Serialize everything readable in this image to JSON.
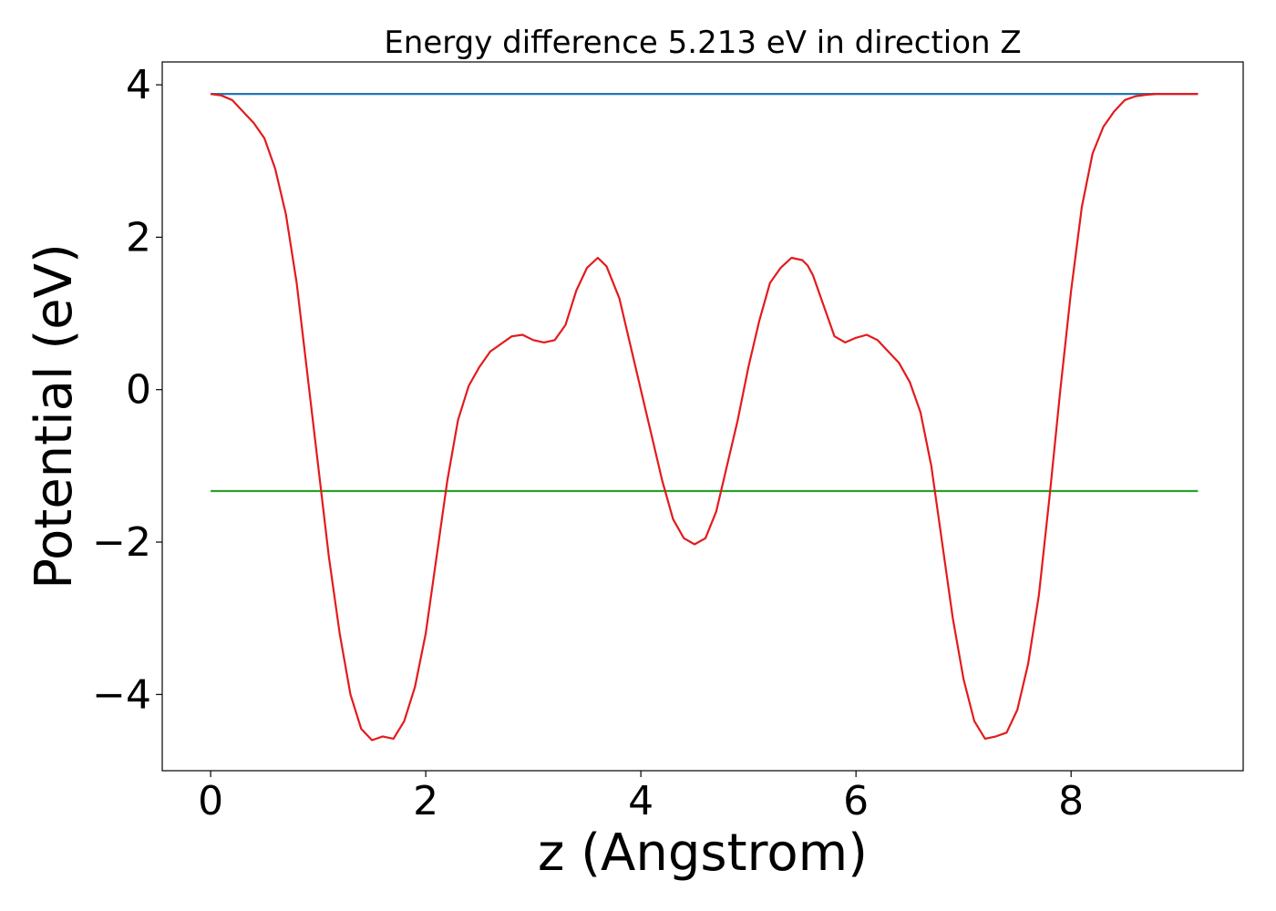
{
  "chart_data": {
    "type": "line",
    "title": "Energy difference 5.213 eV in direction Z",
    "xlabel": "z (Angstrom)",
    "ylabel": "Potential (eV)",
    "xlim": [
      -0.45,
      9.6
    ],
    "ylim": [
      -5.0,
      4.3
    ],
    "xticks": [
      0,
      2,
      4,
      6,
      8
    ],
    "xtick_labels": [
      "0",
      "2",
      "4",
      "6",
      "8"
    ],
    "yticks": [
      -4,
      -2,
      0,
      2,
      4
    ],
    "ytick_labels": [
      "−4",
      "−2",
      "0",
      "2",
      "4"
    ],
    "grid": false,
    "series": [
      {
        "color": "#1f77b4",
        "x": [
          0.0,
          9.18
        ],
        "y": [
          3.88,
          3.88
        ]
      },
      {
        "color": "#2ca02c",
        "x": [
          0.0,
          9.18
        ],
        "y": [
          -1.33,
          -1.33
        ]
      },
      {
        "color": "#e41a1c",
        "x": [
          0.0,
          0.1,
          0.2,
          0.3,
          0.4,
          0.5,
          0.6,
          0.7,
          0.8,
          0.9,
          1.0,
          1.1,
          1.2,
          1.3,
          1.4,
          1.5,
          1.6,
          1.7,
          1.8,
          1.9,
          2.0,
          2.1,
          2.2,
          2.3,
          2.4,
          2.5,
          2.6,
          2.7,
          2.8,
          2.9,
          3.0,
          3.1,
          3.2,
          3.3,
          3.4,
          3.5,
          3.6,
          3.68,
          3.8,
          3.9,
          4.0,
          4.1,
          4.2,
          4.3,
          4.4,
          4.5,
          4.6,
          4.7,
          4.8,
          4.9,
          5.0,
          5.1,
          5.2,
          5.3,
          5.4,
          5.5,
          5.55,
          5.6,
          5.7,
          5.8,
          5.9,
          6.0,
          6.1,
          6.2,
          6.3,
          6.4,
          6.5,
          6.6,
          6.7,
          6.8,
          6.9,
          7.0,
          7.1,
          7.2,
          7.3,
          7.4,
          7.5,
          7.6,
          7.7,
          7.8,
          7.9,
          8.0,
          8.1,
          8.2,
          8.3,
          8.4,
          8.5,
          8.6,
          8.7,
          8.8,
          8.9,
          9.0,
          9.1,
          9.18
        ],
        "y": [
          3.88,
          3.86,
          3.8,
          3.65,
          3.5,
          3.3,
          2.9,
          2.3,
          1.4,
          0.2,
          -1.0,
          -2.2,
          -3.2,
          -4.0,
          -4.45,
          -4.6,
          -4.55,
          -4.58,
          -4.35,
          -3.9,
          -3.2,
          -2.2,
          -1.2,
          -0.4,
          0.05,
          0.3,
          0.5,
          0.6,
          0.7,
          0.72,
          0.65,
          0.62,
          0.65,
          0.85,
          1.3,
          1.6,
          1.73,
          1.62,
          1.2,
          0.6,
          0.0,
          -0.6,
          -1.2,
          -1.7,
          -1.95,
          -2.03,
          -1.95,
          -1.6,
          -1.0,
          -0.4,
          0.3,
          0.9,
          1.4,
          1.6,
          1.73,
          1.7,
          1.63,
          1.5,
          1.1,
          0.7,
          0.62,
          0.68,
          0.72,
          0.65,
          0.5,
          0.35,
          0.1,
          -0.3,
          -1.0,
          -2.0,
          -3.0,
          -3.8,
          -4.35,
          -4.58,
          -4.55,
          -4.5,
          -4.2,
          -3.6,
          -2.7,
          -1.4,
          0.0,
          1.3,
          2.4,
          3.1,
          3.45,
          3.65,
          3.8,
          3.85,
          3.87,
          3.88,
          3.88,
          3.88,
          3.88,
          3.88
        ]
      }
    ]
  }
}
